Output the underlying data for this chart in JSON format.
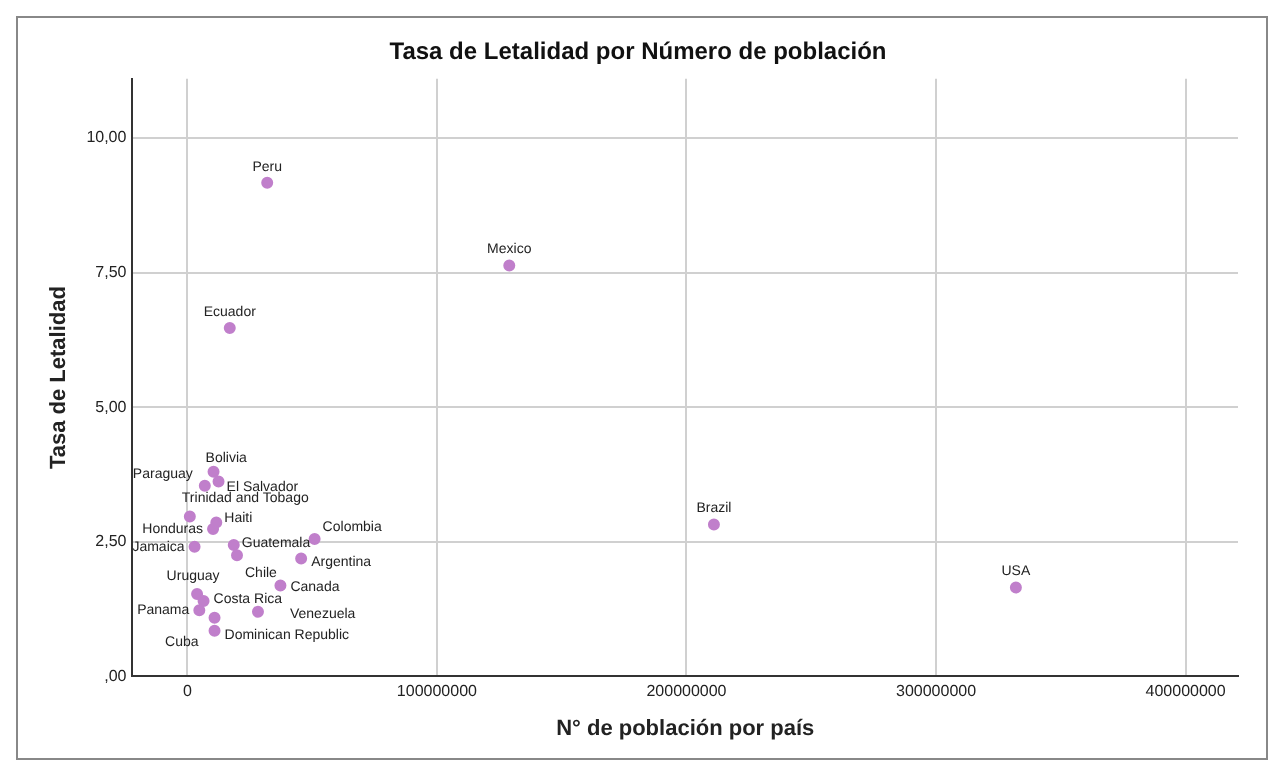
{
  "chart_data": {
    "type": "scatter",
    "title": "Tasa de Letalidad por Número de población",
    "xlabel": "N° de población por país",
    "ylabel": "Tasa de Letalidad",
    "x": [
      32000000,
      129000000,
      17000000,
      211000000,
      332000000,
      10500000,
      7000000,
      12500000,
      1000000,
      10300000,
      11600000,
      2900000,
      18600000,
      19900000,
      51000000,
      45600000,
      37300000,
      3900000,
      6500000,
      4800000,
      28300000,
      10900000,
      10900000
    ],
    "values": [
      9.17,
      7.63,
      6.47,
      2.82,
      1.65,
      3.8,
      3.54,
      3.62,
      2.97,
      2.74,
      2.86,
      2.41,
      2.44,
      2.25,
      2.55,
      2.19,
      1.69,
      1.53,
      1.4,
      1.23,
      1.2,
      0.85,
      1.09
    ],
    "color": "#c07fcb",
    "marker": "circle",
    "grid": true,
    "legend": false,
    "xlim": [
      -22000000,
      421000000
    ],
    "ylim": [
      0,
      11.1
    ],
    "xticks": [
      0,
      100000000,
      200000000,
      300000000,
      400000000
    ],
    "yticks": [
      {
        "value": 0,
        "label": ",00"
      },
      {
        "value": 2.5,
        "label": "2,50"
      },
      {
        "value": 5,
        "label": "5,00"
      },
      {
        "value": 7.5,
        "label": "7,50"
      },
      {
        "value": 10,
        "label": "10,00"
      }
    ],
    "annotations": [
      {
        "text": "Peru",
        "x": 32000000,
        "y": 9.17
      },
      {
        "text": "Mexico",
        "x": 129000000,
        "y": 7.63
      },
      {
        "text": "Ecuador",
        "x": 17000000,
        "y": 6.47
      },
      {
        "text": "Brazil",
        "x": 211000000,
        "y": 2.82
      },
      {
        "text": "USA",
        "x": 332000000,
        "y": 1.65
      },
      {
        "text": "Bolivia",
        "x": 10500000,
        "y": 3.8
      },
      {
        "text": "Paraguay",
        "x": 7000000,
        "y": 3.54
      },
      {
        "text": "El Salvador",
        "x": 12500000,
        "y": 3.62
      },
      {
        "text": "Trinidad and Tobago",
        "x": 1000000,
        "y": 2.97
      },
      {
        "text": "Honduras",
        "x": 10300000,
        "y": 2.74
      },
      {
        "text": "Haiti",
        "x": 11600000,
        "y": 2.86
      },
      {
        "text": "Jamaica",
        "x": 2900000,
        "y": 2.41
      },
      {
        "text": "Guatemala",
        "x": 18600000,
        "y": 2.44
      },
      {
        "text": "Chile",
        "x": 19900000,
        "y": 2.25
      },
      {
        "text": "Colombia",
        "x": 51000000,
        "y": 2.55
      },
      {
        "text": "Argentina",
        "x": 45600000,
        "y": 2.19
      },
      {
        "text": "Canada",
        "x": 37300000,
        "y": 1.69
      },
      {
        "text": "Uruguay",
        "x": 3900000,
        "y": 1.53
      },
      {
        "text": "Costa Rica",
        "x": 6500000,
        "y": 1.4
      },
      {
        "text": "Panama",
        "x": 4800000,
        "y": 1.23
      },
      {
        "text": "Venezuela",
        "x": 28300000,
        "y": 1.2
      },
      {
        "text": "Dominican Republic",
        "x": 10900000,
        "y": 0.85
      },
      {
        "text": "Cuba",
        "x": 10900000,
        "y": 1.09
      }
    ]
  }
}
